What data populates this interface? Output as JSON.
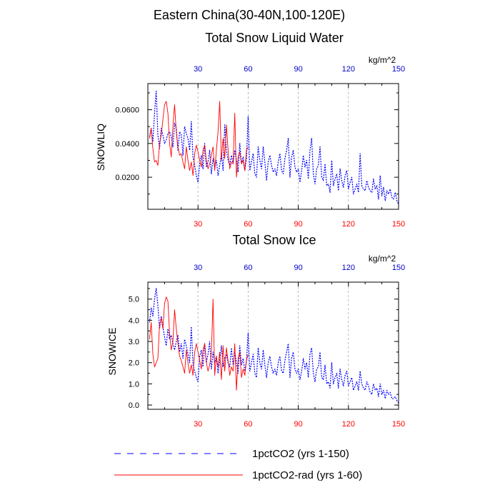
{
  "header": {
    "title": "Eastern China(30-40N,100-120E)"
  },
  "legend": {
    "entries": [
      {
        "label": "1pctCO2 (yrs 1-150)",
        "color": "#0000ff",
        "style": "dashed"
      },
      {
        "label": "1pctCO2-rad (yrs 1-60)",
        "color": "#ff0000",
        "style": "solid"
      }
    ]
  },
  "chart_data": [
    {
      "type": "line",
      "title": "Total Snow Liquid Water",
      "ylabel": "SNOWLIQ",
      "unit_label": "kg/m^2",
      "xlim": [
        0,
        150
      ],
      "ylim": [
        0.001,
        0.0755
      ],
      "x_ticks": [
        "30",
        "60",
        "90",
        "120",
        "150"
      ],
      "y_ticks": [
        "0.0200",
        "0.0400",
        "0.0600"
      ],
      "bottom_tick_color": "#ff0000",
      "top_tick_color": "#0000cc",
      "grid_x": true,
      "series": [
        {
          "name": "1pctCO2 (yrs 1-150)",
          "color": "#0000ff",
          "dash": "dashed",
          "x": [
            1,
            2,
            3,
            4,
            5,
            6,
            7,
            8,
            9,
            10,
            11,
            12,
            13,
            14,
            15,
            16,
            17,
            18,
            19,
            20,
            21,
            22,
            23,
            24,
            25,
            26,
            27,
            28,
            29,
            30,
            31,
            32,
            33,
            34,
            35,
            36,
            37,
            38,
            39,
            40,
            41,
            42,
            43,
            44,
            45,
            46,
            47,
            48,
            49,
            50,
            51,
            52,
            53,
            54,
            55,
            56,
            57,
            58,
            59,
            60,
            61,
            62,
            63,
            64,
            65,
            66,
            67,
            68,
            69,
            70,
            71,
            72,
            73,
            74,
            75,
            76,
            77,
            78,
            79,
            80,
            81,
            82,
            83,
            84,
            85,
            86,
            87,
            88,
            89,
            90,
            91,
            92,
            93,
            94,
            95,
            96,
            97,
            98,
            99,
            100,
            101,
            102,
            103,
            104,
            105,
            106,
            107,
            108,
            109,
            110,
            111,
            112,
            113,
            114,
            115,
            116,
            117,
            118,
            119,
            120,
            121,
            122,
            123,
            124,
            125,
            126,
            127,
            128,
            129,
            130,
            131,
            132,
            133,
            134,
            135,
            136,
            137,
            138,
            139,
            140,
            141,
            142,
            143,
            144,
            145,
            146,
            147,
            148,
            149,
            150
          ],
          "values": [
            0.044,
            0.049,
            0.041,
            0.058,
            0.071,
            0.045,
            0.037,
            0.049,
            0.045,
            0.04,
            0.042,
            0.046,
            0.047,
            0.044,
            0.038,
            0.052,
            0.049,
            0.036,
            0.047,
            0.045,
            0.033,
            0.05,
            0.046,
            0.043,
            0.036,
            0.053,
            0.032,
            0.027,
            0.021,
            0.017,
            0.028,
            0.033,
            0.025,
            0.04,
            0.026,
            0.029,
            0.036,
            0.022,
            0.031,
            0.026,
            0.03,
            0.021,
            0.027,
            0.034,
            0.024,
            0.051,
            0.036,
            0.03,
            0.027,
            0.033,
            0.028,
            0.036,
            0.03,
            0.023,
            0.04,
            0.028,
            0.032,
            0.024,
            0.031,
            0.056,
            0.024,
            0.029,
            0.034,
            0.022,
            0.02,
            0.038,
            0.03,
            0.025,
            0.038,
            0.029,
            0.018,
            0.029,
            0.033,
            0.027,
            0.023,
            0.025,
            0.021,
            0.029,
            0.034,
            0.024,
            0.022,
            0.031,
            0.036,
            0.043,
            0.02,
            0.032,
            0.036,
            0.026,
            0.023,
            0.025,
            0.017,
            0.024,
            0.033,
            0.026,
            0.03,
            0.019,
            0.036,
            0.043,
            0.022,
            0.016,
            0.025,
            0.027,
            0.038,
            0.02,
            0.018,
            0.028,
            0.015,
            0.016,
            0.011,
            0.03,
            0.015,
            0.019,
            0.022,
            0.012,
            0.025,
            0.018,
            0.014,
            0.021,
            0.024,
            0.013,
            0.017,
            0.02,
            0.01,
            0.013,
            0.016,
            0.011,
            0.034,
            0.015,
            0.013,
            0.012,
            0.018,
            0.014,
            0.012,
            0.011,
            0.019,
            0.013,
            0.015,
            0.007,
            0.021,
            0.009,
            0.014,
            0.006,
            0.012,
            0.01,
            0.013,
            0.008,
            0.007,
            0.011,
            0.006,
            0.004
          ]
        },
        {
          "name": "1pctCO2-rad (yrs 1-60)",
          "color": "#ff0000",
          "dash": "solid",
          "x": [
            1,
            2,
            3,
            4,
            5,
            6,
            7,
            8,
            9,
            10,
            11,
            12,
            13,
            14,
            15,
            16,
            17,
            18,
            19,
            20,
            21,
            22,
            23,
            24,
            25,
            26,
            27,
            28,
            29,
            30,
            31,
            32,
            33,
            34,
            35,
            36,
            37,
            38,
            39,
            40,
            41,
            42,
            43,
            44,
            45,
            46,
            47,
            48,
            49,
            50,
            51,
            52,
            53,
            54,
            55,
            56,
            57,
            58,
            59,
            60
          ],
          "values": [
            0.043,
            0.049,
            0.037,
            0.029,
            0.03,
            0.027,
            0.04,
            0.045,
            0.054,
            0.063,
            0.065,
            0.058,
            0.04,
            0.032,
            0.05,
            0.063,
            0.047,
            0.038,
            0.033,
            0.034,
            0.029,
            0.025,
            0.038,
            0.03,
            0.024,
            0.029,
            0.021,
            0.034,
            0.039,
            0.035,
            0.03,
            0.026,
            0.036,
            0.039,
            0.03,
            0.025,
            0.028,
            0.033,
            0.038,
            0.024,
            0.036,
            0.047,
            0.065,
            0.03,
            0.043,
            0.031,
            0.051,
            0.036,
            0.025,
            0.029,
            0.028,
            0.058,
            0.02,
            0.032,
            0.035,
            0.028,
            0.03,
            0.024,
            0.036,
            0.038
          ]
        }
      ]
    },
    {
      "type": "line",
      "title": "Total Snow Ice",
      "ylabel": "SNOWICE",
      "unit_label": "kg/m^2",
      "xlim": [
        0,
        150
      ],
      "ylim": [
        -0.2,
        5.8
      ],
      "x_ticks": [
        "30",
        "60",
        "90",
        "120",
        "150"
      ],
      "y_ticks": [
        "0.0",
        "1.0",
        "2.0",
        "3.0",
        "4.0",
        "5.0"
      ],
      "bottom_tick_color": "#ff0000",
      "top_tick_color": "#0000cc",
      "grid_x": true,
      "series": [
        {
          "name": "1pctCO2 (yrs 1-150)",
          "color": "#0000ff",
          "dash": "dashed",
          "x": [
            1,
            2,
            3,
            4,
            5,
            6,
            7,
            8,
            9,
            10,
            11,
            12,
            13,
            14,
            15,
            16,
            17,
            18,
            19,
            20,
            21,
            22,
            23,
            24,
            25,
            26,
            27,
            28,
            29,
            30,
            31,
            32,
            33,
            34,
            35,
            36,
            37,
            38,
            39,
            40,
            41,
            42,
            43,
            44,
            45,
            46,
            47,
            48,
            49,
            50,
            51,
            52,
            53,
            54,
            55,
            56,
            57,
            58,
            59,
            60,
            61,
            62,
            63,
            64,
            65,
            66,
            67,
            68,
            69,
            70,
            71,
            72,
            73,
            74,
            75,
            76,
            77,
            78,
            79,
            80,
            81,
            82,
            83,
            84,
            85,
            86,
            87,
            88,
            89,
            90,
            91,
            92,
            93,
            94,
            95,
            96,
            97,
            98,
            99,
            100,
            101,
            102,
            103,
            104,
            105,
            106,
            107,
            108,
            109,
            110,
            111,
            112,
            113,
            114,
            115,
            116,
            117,
            118,
            119,
            120,
            121,
            122,
            123,
            124,
            125,
            126,
            127,
            128,
            129,
            130,
            131,
            132,
            133,
            134,
            135,
            136,
            137,
            138,
            139,
            140,
            141,
            142,
            143,
            144,
            145,
            146,
            147,
            148,
            149,
            150
          ],
          "values": [
            3.9,
            4.6,
            4.2,
            5.0,
            5.5,
            4.7,
            3.6,
            4.2,
            3.7,
            3.2,
            2.8,
            3.6,
            3.1,
            3.3,
            2.9,
            2.6,
            3.0,
            3.3,
            2.5,
            2.9,
            2.2,
            3.1,
            2.8,
            2.4,
            2.0,
            3.7,
            1.9,
            1.6,
            1.3,
            1.1,
            2.3,
            2.6,
            1.8,
            2.9,
            2.0,
            2.4,
            3.0,
            1.7,
            2.5,
            2.0,
            2.3,
            1.5,
            2.1,
            2.8,
            1.8,
            2.2,
            2.4,
            2.0,
            1.8,
            2.7,
            1.9,
            2.5,
            2.0,
            1.5,
            2.8,
            1.9,
            2.2,
            1.6,
            2.1,
            3.4,
            1.6,
            2.0,
            2.4,
            1.5,
            1.3,
            2.7,
            2.0,
            1.7,
            2.6,
            1.9,
            1.3,
            2.0,
            2.3,
            1.8,
            1.5,
            1.7,
            1.4,
            2.0,
            2.3,
            1.6,
            1.5,
            2.1,
            2.5,
            2.9,
            1.3,
            2.2,
            2.5,
            1.7,
            1.5,
            1.7,
            1.2,
            1.6,
            2.2,
            1.7,
            2.0,
            1.3,
            2.4,
            2.7,
            1.5,
            1.1,
            1.7,
            1.8,
            2.5,
            1.3,
            1.2,
            1.9,
            1.0,
            1.1,
            0.8,
            2.0,
            1.0,
            1.3,
            1.5,
            0.8,
            1.7,
            1.2,
            0.9,
            1.4,
            1.6,
            0.9,
            1.1,
            1.3,
            0.7,
            0.9,
            1.1,
            0.7,
            1.6,
            1.0,
            0.8,
            0.7,
            1.1,
            0.9,
            0.6,
            0.5,
            1.0,
            0.7,
            0.8,
            0.4,
            1.0,
            0.5,
            0.7,
            0.3,
            0.7,
            0.5,
            0.6,
            0.3,
            0.3,
            0.4,
            0.2,
            0.1
          ]
        },
        {
          "name": "1pctCO2-rad (yrs 1-60)",
          "color": "#ff0000",
          "dash": "solid",
          "x": [
            1,
            2,
            3,
            4,
            5,
            6,
            7,
            8,
            9,
            10,
            11,
            12,
            13,
            14,
            15,
            16,
            17,
            18,
            19,
            20,
            21,
            22,
            23,
            24,
            25,
            26,
            27,
            28,
            29,
            30,
            31,
            32,
            33,
            34,
            35,
            36,
            37,
            38,
            39,
            40,
            41,
            42,
            43,
            44,
            45,
            46,
            47,
            48,
            49,
            50,
            51,
            52,
            53,
            54,
            55,
            56,
            57,
            58,
            59,
            60
          ],
          "values": [
            3.1,
            3.9,
            2.4,
            1.8,
            2.0,
            2.2,
            3.8,
            4.1,
            3.6,
            4.8,
            5.1,
            4.9,
            3.4,
            2.6,
            3.0,
            4.5,
            3.6,
            2.9,
            2.3,
            2.1,
            1.8,
            1.5,
            2.6,
            2.0,
            1.5,
            1.9,
            1.4,
            2.5,
            2.9,
            2.5,
            2.1,
            1.7,
            2.6,
            2.9,
            2.0,
            1.6,
            1.9,
            2.4,
            5.0,
            1.4,
            2.3,
            1.8,
            2.5,
            1.2,
            2.8,
            1.6,
            2.7,
            2.1,
            1.4,
            1.8,
            1.6,
            2.9,
            0.7,
            2.2,
            2.5,
            1.3,
            1.7,
            1.4,
            2.1,
            2.4
          ]
        }
      ]
    }
  ]
}
